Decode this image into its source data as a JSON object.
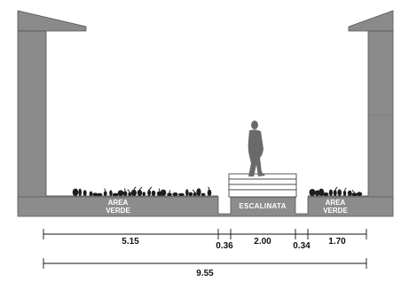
{
  "section": {
    "labels": {
      "area_verde_left": [
        "AREA",
        "VERDE"
      ],
      "escalinata": "ESCALINATA",
      "area_verde_right": [
        "AREA",
        "VERDE"
      ]
    },
    "dimensions": {
      "top_row": [
        "5.15",
        "0.36",
        "2.00",
        "0.34",
        "1.70"
      ],
      "overall": "9.55"
    },
    "colors": {
      "wall": "#8a8a8a",
      "wall_edge": "#555555",
      "ground": "#8c8c8c",
      "vegetation": "#1e1e1e",
      "person": "#6a6a6a",
      "dim_line": "#111111",
      "stairs_fill": "#ffffff"
    }
  }
}
